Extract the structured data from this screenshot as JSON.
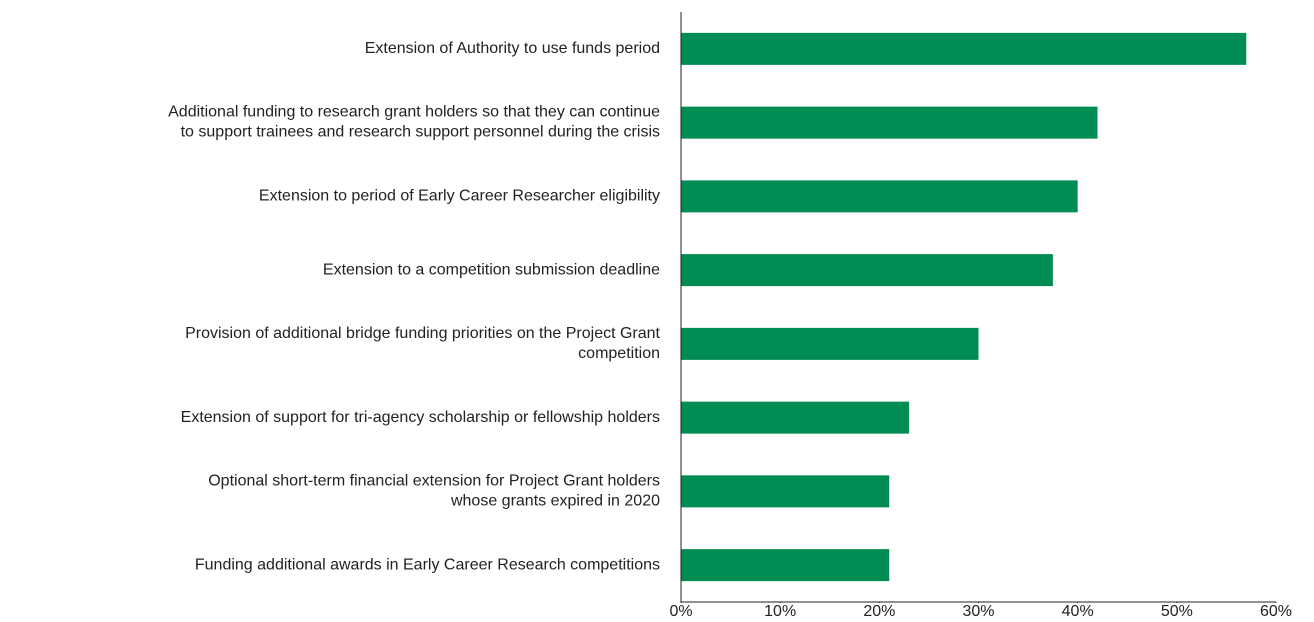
{
  "chart_data": {
    "type": "hbar",
    "orientation": "horizontal",
    "categories": [
      "Extension of Authority to use funds period",
      "Additional funding to research grant holders so that they can continue\nto support trainees and research support personnel during the crisis",
      "Extension to period of Early Career Researcher eligibility",
      "Extension to a competition submission deadline",
      "Provision of additional bridge funding priorities on the Project Grant\ncompetition",
      "Extension of support for tri-agency scholarship or fellowship holders",
      "Optional short-term financial extension for Project Grant holders\nwhose grants expired in 2020",
      "Funding additional awards in Early Career Research competitions"
    ],
    "values": [
      57,
      42,
      40,
      37.5,
      30,
      23,
      21,
      21
    ],
    "color": "#008c52",
    "xlim": [
      0,
      60
    ],
    "xticks": [
      {
        "value": 0,
        "label": "0%"
      },
      {
        "value": 10,
        "label": "10%"
      },
      {
        "value": 20,
        "label": "20%"
      },
      {
        "value": 30,
        "label": "30%"
      },
      {
        "value": 40,
        "label": "40%"
      },
      {
        "value": 50,
        "label": "50%"
      },
      {
        "value": 60,
        "label": "60%"
      }
    ],
    "grid": false
  }
}
